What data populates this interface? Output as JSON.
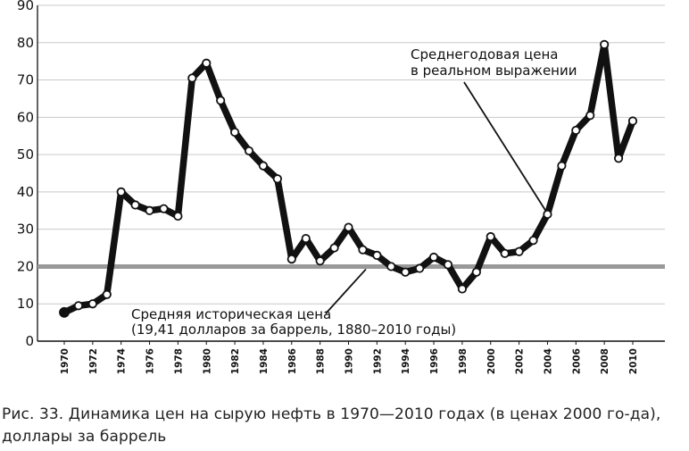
{
  "chart_data": {
    "type": "line",
    "title": "",
    "xlabel": "",
    "ylabel": "",
    "ylim": [
      0,
      90
    ],
    "xlim": [
      1970,
      2010
    ],
    "yticks": [
      0,
      10,
      20,
      30,
      40,
      50,
      60,
      70,
      80,
      90
    ],
    "xticks": [
      1970,
      1972,
      1974,
      1976,
      1978,
      1980,
      1982,
      1984,
      1986,
      1988,
      1990,
      1992,
      1994,
      1996,
      1998,
      2000,
      2002,
      2004,
      2006,
      2008,
      2010
    ],
    "grid": true,
    "series": [
      {
        "name": "Среднегодовая цена в реальном выражении",
        "color": "#111111",
        "x": [
          1970,
          1971,
          1972,
          1973,
          1974,
          1975,
          1976,
          1977,
          1978,
          1979,
          1980,
          1981,
          1982,
          1983,
          1984,
          1985,
          1986,
          1987,
          1988,
          1989,
          1990,
          1991,
          1992,
          1993,
          1994,
          1995,
          1996,
          1997,
          1998,
          1999,
          2000,
          2001,
          2002,
          2003,
          2004,
          2005,
          2006,
          2007,
          2008,
          2009,
          2010
        ],
        "values": [
          7.7,
          9.5,
          10,
          12.5,
          40,
          36.5,
          35,
          35.5,
          33.5,
          70.5,
          74.5,
          64.5,
          56,
          51,
          47,
          43.5,
          22,
          27.5,
          21.5,
          25,
          30.5,
          24.5,
          23,
          20,
          18.5,
          19.5,
          22.5,
          20.5,
          14,
          18.5,
          28,
          23.5,
          24,
          27,
          34,
          47,
          56.5,
          60.5,
          79.5,
          49,
          59
        ]
      },
      {
        "name": "Средняя историческая цена",
        "color": "#999999",
        "value": 20
      }
    ],
    "annotations": [
      {
        "id": "real-price",
        "lines": [
          "Среднегодовая цена",
          "в реальном выражении"
        ],
        "points_to": [
          2004,
          34
        ]
      },
      {
        "id": "hist-avg",
        "lines": [
          "Средняя историческая цена",
          "(19,41 долларов за баррель, 1880–2010 годы)"
        ],
        "points_to": [
          1993,
          20
        ]
      }
    ]
  },
  "caption": "Рис. 33. Динамика цен на сырую нефть в 1970—2010 годах (в ценах 2000 го-да), доллары за баррель"
}
